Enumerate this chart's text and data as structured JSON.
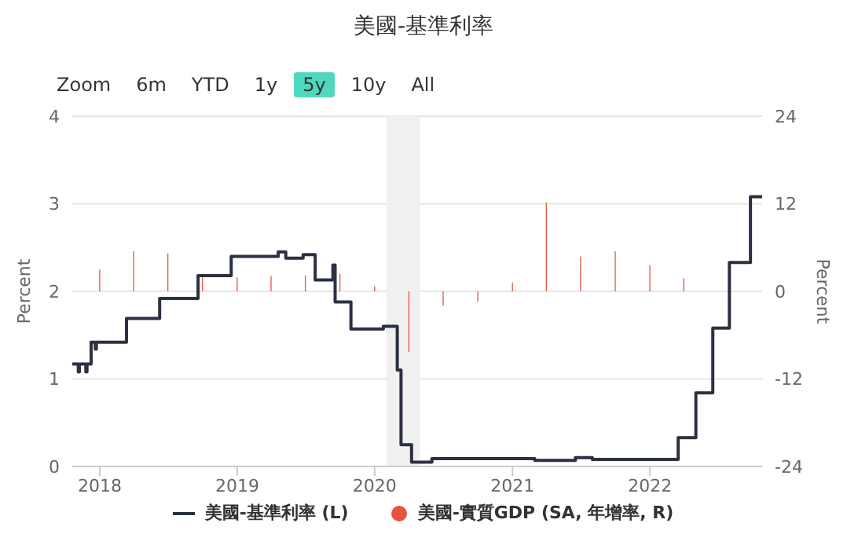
{
  "chart_data": {
    "type": "step",
    "title": "美國-基準利率",
    "annotations": [
      "Zoom",
      "6m",
      "YTD",
      "1y",
      "5y",
      "10y",
      "All"
    ],
    "ylabel": "Percent",
    "y2label": "Percent",
    "xlim": [
      "2017-10-20",
      "2022-10-26"
    ],
    "xticks": [
      "2018",
      "2019",
      "2020",
      "2021",
      "2022"
    ],
    "ylim": [
      0,
      4
    ],
    "yticks": [
      0,
      1,
      2,
      3,
      4
    ],
    "y2lim": [
      -24,
      24
    ],
    "y2ticks": [
      -24,
      -12,
      0,
      12,
      24
    ],
    "grid": "y",
    "legend": "bottom",
    "bands": [
      {
        "axis": "x",
        "from": "2020-02-01",
        "to": "2020-04-30",
        "color": "#f0f0f0"
      }
    ],
    "series": [
      {
        "name": "美國-基準利率 (L)",
        "color": "#2b3142",
        "x": [
          "2017-10-20",
          "2017-11-05",
          "2017-11-08",
          "2017-11-25",
          "2017-11-28",
          "2017-12-09",
          "2017-12-20",
          "2017-12-23",
          "2018-03-13",
          "2018-06-09",
          "2018-09-19",
          "2018-12-16",
          "2019-04-20",
          "2019-05-10",
          "2019-06-25",
          "2019-07-27",
          "2019-09-12",
          "2019-09-18",
          "2019-10-30",
          "2020-01-24",
          "2020-03-01",
          "2020-03-11",
          "2020-04-08",
          "2020-06-01",
          "2021-03-01",
          "2021-06-17",
          "2021-08-01",
          "2022-03-17",
          "2022-05-03",
          "2022-06-17",
          "2022-07-31",
          "2022-09-25",
          "2022-10-26"
        ],
        "values": [
          1.17,
          1.08,
          1.17,
          1.08,
          1.17,
          1.42,
          1.34,
          1.42,
          1.69,
          1.92,
          2.18,
          2.4,
          2.45,
          2.38,
          2.42,
          2.13,
          2.3,
          1.88,
          1.57,
          1.6,
          1.1,
          0.25,
          0.05,
          0.09,
          0.07,
          0.1,
          0.08,
          0.33,
          0.84,
          1.58,
          2.33,
          3.08,
          3.08
        ]
      },
      {
        "name": "美國-實質GDP (SA, 年增率, R)",
        "type": "bar",
        "axis": "y2",
        "color": "#e8533f",
        "x": [
          "2018-01-01",
          "2018-04-01",
          "2018-07-01",
          "2018-10-01",
          "2019-01-01",
          "2019-04-01",
          "2019-07-01",
          "2019-10-01",
          "2020-01-01",
          "2020-04-01",
          "2020-07-01",
          "2020-10-01",
          "2021-01-01",
          "2021-04-01",
          "2021-07-01",
          "2021-10-01",
          "2022-01-01",
          "2022-04-01"
        ],
        "values": [
          3.0,
          5.5,
          5.2,
          2.2,
          1.9,
          2.1,
          2.2,
          2.4,
          0.7,
          -8.3,
          -2.0,
          -1.4,
          1.2,
          12.2,
          4.8,
          5.5,
          3.6,
          1.8
        ]
      }
    ]
  }
}
